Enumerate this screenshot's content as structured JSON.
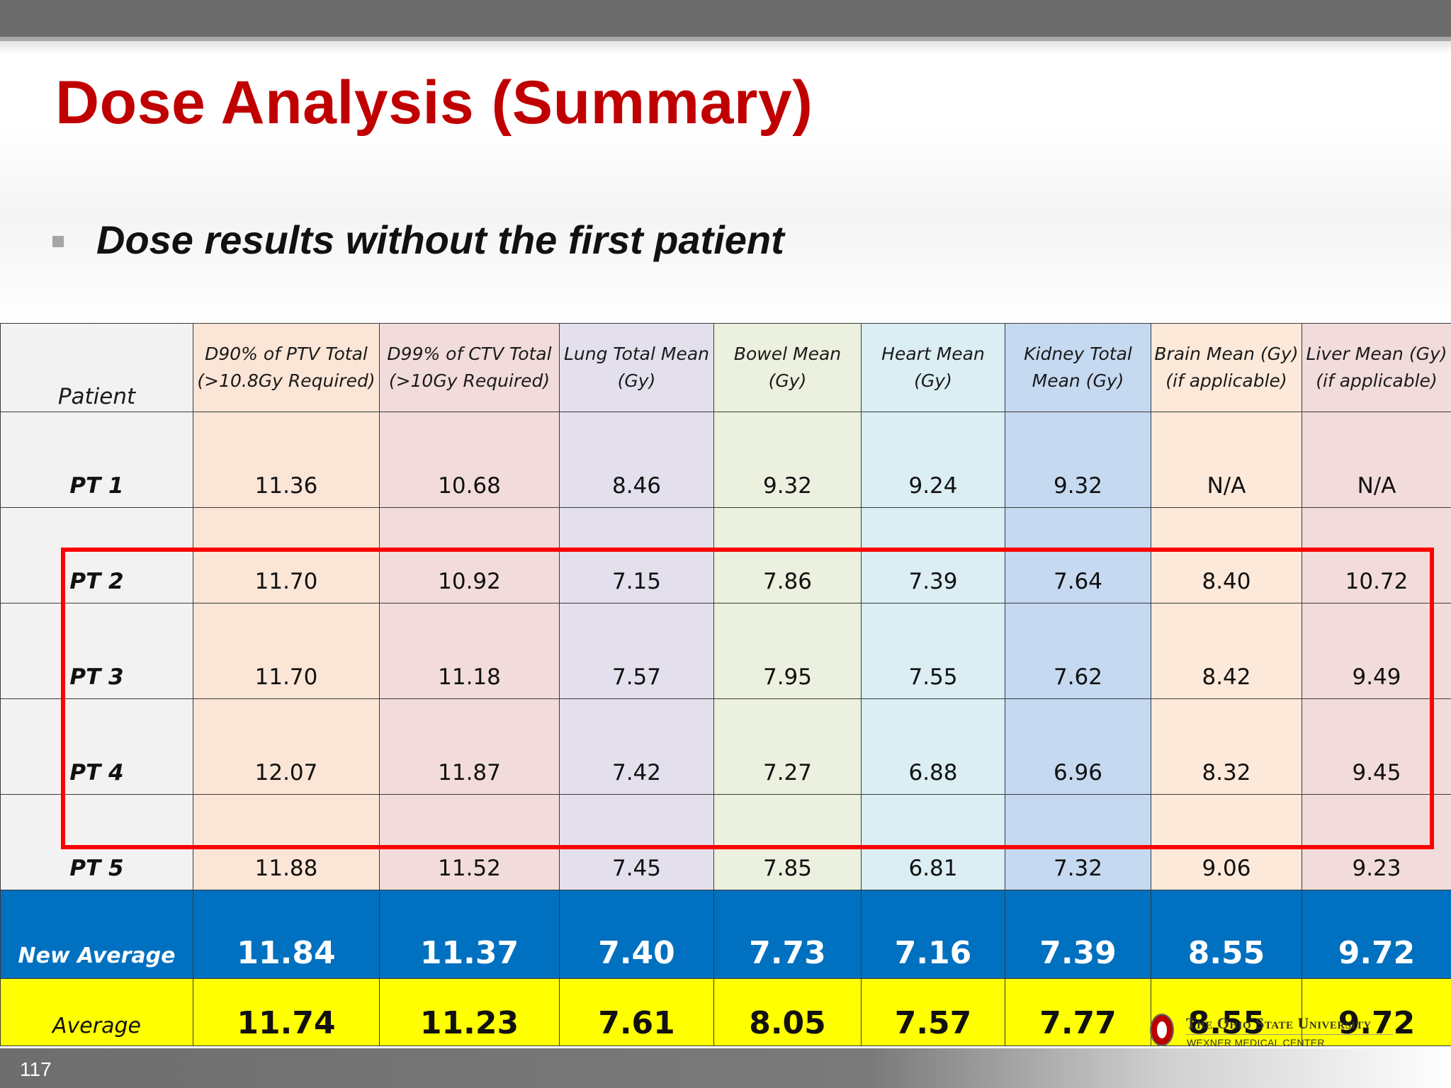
{
  "slide": {
    "title": "Dose Analysis (Summary)",
    "bullet": "Dose results without the first patient",
    "page_number": "117"
  },
  "table": {
    "headers": [
      {
        "line1": "Patient",
        "line2": ""
      },
      {
        "line1": "D90% of PTV Total",
        "line2": "(>10.8Gy Required)"
      },
      {
        "line1": "D99% of CTV Total",
        "line2": "(>10Gy Required)"
      },
      {
        "line1": "Lung Total Mean",
        "line2": "(Gy)"
      },
      {
        "line1": "Bowel Mean",
        "line2": "(Gy)"
      },
      {
        "line1": "Heart Mean",
        "line2": "(Gy)"
      },
      {
        "line1": "Kidney Total",
        "line2": "Mean (Gy)"
      },
      {
        "line1": "Brain Mean  (Gy)",
        "line2": "(if applicable)"
      },
      {
        "line1": "Liver Mean (Gy)",
        "line2": "(if applicable)"
      }
    ],
    "rows": [
      [
        "PT 1",
        "11.36",
        "10.68",
        "8.46",
        "9.32",
        "9.24",
        "9.32",
        "N/A",
        "N/A"
      ],
      [
        "PT 2",
        "11.70",
        "10.92",
        "7.15",
        "7.86",
        "7.39",
        "7.64",
        "8.40",
        "10.72"
      ],
      [
        "PT 3",
        "11.70",
        "11.18",
        "7.57",
        "7.95",
        "7.55",
        "7.62",
        "8.42",
        "9.49"
      ],
      [
        "PT 4",
        "12.07",
        "11.87",
        "7.42",
        "7.27",
        "6.88",
        "6.96",
        "8.32",
        "9.45"
      ],
      [
        "PT 5",
        "11.88",
        "11.52",
        "7.45",
        "7.85",
        "6.81",
        "7.32",
        "9.06",
        "9.23"
      ]
    ],
    "new_average": [
      "New Average",
      "11.84",
      "11.37",
      "7.40",
      "7.73",
      "7.16",
      "7.39",
      "8.55",
      "9.72"
    ],
    "average": [
      "Average",
      "11.74",
      "11.23",
      "7.61",
      "8.05",
      "7.57",
      "7.77",
      "8.55",
      "9.72"
    ]
  },
  "logo": {
    "name": "The Ohio State University",
    "sub": "WEXNER MEDICAL CENTER"
  },
  "colors": {
    "title": "#c00000",
    "highlight_box": "#ff0000",
    "new_average_row": "#0070c0",
    "average_row": "#ffff00"
  }
}
